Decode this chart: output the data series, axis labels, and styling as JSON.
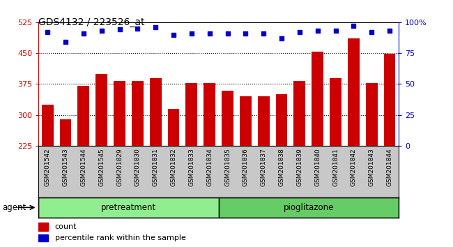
{
  "title": "GDS4132 / 223526_at",
  "samples": [
    "GSM201542",
    "GSM201543",
    "GSM201544",
    "GSM201545",
    "GSM201829",
    "GSM201830",
    "GSM201831",
    "GSM201832",
    "GSM201833",
    "GSM201834",
    "GSM201835",
    "GSM201836",
    "GSM201837",
    "GSM201838",
    "GSM201839",
    "GSM201840",
    "GSM201841",
    "GSM201842",
    "GSM201843",
    "GSM201844"
  ],
  "counts": [
    325,
    290,
    370,
    400,
    382,
    382,
    390,
    315,
    378,
    378,
    358,
    345,
    345,
    350,
    382,
    453,
    390,
    485,
    378,
    448
  ],
  "percentile_ranks": [
    92,
    84,
    91,
    93,
    94,
    95,
    96,
    90,
    91,
    91,
    91,
    91,
    91,
    87,
    92,
    93,
    93,
    97,
    92,
    93
  ],
  "groups": {
    "pretreatment": [
      0,
      9
    ],
    "pioglitazone": [
      10,
      19
    ]
  },
  "ylim_left": [
    225,
    525
  ],
  "ylim_right": [
    0,
    100
  ],
  "yticks_left": [
    225,
    300,
    375,
    450,
    525
  ],
  "yticks_right": [
    0,
    25,
    50,
    75,
    100
  ],
  "bar_color": "#cc0000",
  "dot_color": "#0000cc",
  "bg_color": "#c8c8c8",
  "plot_bg_color": "#ffffff",
  "pretreatment_color": "#90ee90",
  "pioglitazone_color": "#66cc66",
  "left_axis_color": "#cc0000",
  "right_axis_color": "#0000cc",
  "grid_yticks": [
    300,
    375,
    450
  ]
}
